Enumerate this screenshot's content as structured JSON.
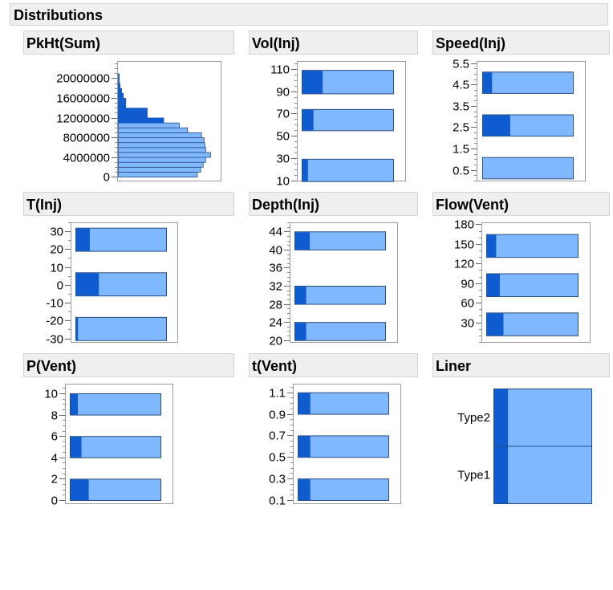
{
  "window": {
    "title": "Distributions"
  },
  "colors": {
    "bar_fill": "#80b8ff",
    "bar_selected": "#0f5cd1",
    "bar_stroke": "#2a4d80",
    "frame": "#9a9a9a",
    "header_bg": "#efefef"
  },
  "chart_data": [
    {
      "id": "pkht",
      "type": "bar",
      "orientation": "horizontal-histogram",
      "title": "PkHt(Sum)",
      "ylim": [
        -800000,
        23500000
      ],
      "y_ticks": [
        0,
        4000000,
        8000000,
        12000000,
        16000000,
        20000000
      ],
      "y_tick_labels": [
        "0",
        "4000000",
        "8000000",
        "12000000",
        "16000000",
        "20000000"
      ],
      "bins": [
        {
          "lo": 0,
          "hi": 1000000,
          "count": 96,
          "selected": 0
        },
        {
          "lo": 1000000,
          "hi": 2000000,
          "count": 100,
          "selected": 0
        },
        {
          "lo": 2000000,
          "hi": 3000000,
          "count": 103,
          "selected": 0
        },
        {
          "lo": 3000000,
          "hi": 4000000,
          "count": 106,
          "selected": 0
        },
        {
          "lo": 4000000,
          "hi": 5000000,
          "count": 112,
          "selected": 0
        },
        {
          "lo": 5000000,
          "hi": 6000000,
          "count": 106,
          "selected": 0
        },
        {
          "lo": 6000000,
          "hi": 7000000,
          "count": 105,
          "selected": 0
        },
        {
          "lo": 7000000,
          "hi": 8000000,
          "count": 104,
          "selected": 0
        },
        {
          "lo": 8000000,
          "hi": 9000000,
          "count": 101,
          "selected": 0
        },
        {
          "lo": 9000000,
          "hi": 10000000,
          "count": 84,
          "selected": 0
        },
        {
          "lo": 10000000,
          "hi": 11000000,
          "count": 74,
          "selected": 0
        },
        {
          "lo": 11000000,
          "hi": 12000000,
          "count": 55,
          "selected": 55
        },
        {
          "lo": 12000000,
          "hi": 13000000,
          "count": 35,
          "selected": 35
        },
        {
          "lo": 13000000,
          "hi": 14000000,
          "count": 35,
          "selected": 35
        },
        {
          "lo": 14000000,
          "hi": 15000000,
          "count": 9,
          "selected": 9
        },
        {
          "lo": 15000000,
          "hi": 16000000,
          "count": 9,
          "selected": 9
        },
        {
          "lo": 16000000,
          "hi": 17000000,
          "count": 6,
          "selected": 6
        },
        {
          "lo": 17000000,
          "hi": 18000000,
          "count": 4,
          "selected": 4
        },
        {
          "lo": 18000000,
          "hi": 19000000,
          "count": 2,
          "selected": 2
        },
        {
          "lo": 19000000,
          "hi": 20000000,
          "count": 1,
          "selected": 1
        },
        {
          "lo": 20000000,
          "hi": 21000000,
          "count": 1,
          "selected": 1
        },
        {
          "lo": 21000000,
          "hi": 22000000,
          "count": 0,
          "selected": 0
        },
        {
          "lo": 22000000,
          "hi": 23000000,
          "count": 0,
          "selected": 0
        }
      ],
      "xlim": [
        0,
        112
      ]
    },
    {
      "id": "vol",
      "type": "bar",
      "orientation": "horizontal",
      "title": "Vol(Inj)",
      "ylim": [
        10,
        117
      ],
      "y_ticks": [
        10,
        30,
        50,
        70,
        90,
        110
      ],
      "y_tick_labels": [
        "10",
        "30",
        "50",
        "70",
        "90",
        "110"
      ],
      "minor_step": 5,
      "bars": [
        {
          "lo": 9.5,
          "hi": 29.5,
          "total": 1,
          "selected": 0.06
        },
        {
          "lo": 55,
          "hi": 74,
          "total": 1,
          "selected": 0.12
        },
        {
          "lo": 88,
          "hi": 109,
          "total": 1,
          "selected": 0.22
        }
      ]
    },
    {
      "id": "speed",
      "type": "bar",
      "orientation": "horizontal",
      "title": "Speed(Inj)",
      "ylim": [
        0,
        5.6
      ],
      "y_ticks": [
        0.5,
        1.5,
        2.5,
        3.5,
        4.5,
        5.5
      ],
      "y_tick_labels": [
        "0.5",
        "1.5",
        "2.5",
        "3.5",
        "4.5",
        "5.5"
      ],
      "minor_step": 0.25,
      "bars": [
        {
          "lo": 0.1,
          "hi": 1.1,
          "total": 1,
          "selected": 0.0
        },
        {
          "lo": 2.1,
          "hi": 3.1,
          "total": 1,
          "selected": 0.3
        },
        {
          "lo": 4.1,
          "hi": 5.1,
          "total": 1,
          "selected": 0.1
        }
      ]
    },
    {
      "id": "tinj",
      "type": "bar",
      "orientation": "horizontal",
      "title": "T(Inj)",
      "ylim": [
        -32,
        35
      ],
      "y_ticks": [
        -30,
        -20,
        -10,
        0,
        10,
        20,
        30
      ],
      "y_tick_labels": [
        "-30",
        "-20",
        "-10",
        "0",
        "10",
        "20",
        "30"
      ],
      "minor_step": 5,
      "bars": [
        {
          "lo": -31,
          "hi": -18,
          "total": 1,
          "selected": 0.02
        },
        {
          "lo": -6,
          "hi": 7,
          "total": 1,
          "selected": 0.25
        },
        {
          "lo": 19,
          "hi": 32,
          "total": 1,
          "selected": 0.15
        }
      ]
    },
    {
      "id": "depth",
      "type": "bar",
      "orientation": "horizontal",
      "title": "Depth(Inj)",
      "ylim": [
        19.6,
        46
      ],
      "y_ticks": [
        20,
        24,
        28,
        32,
        36,
        40,
        44
      ],
      "y_tick_labels": [
        "20",
        "24",
        "28",
        "32",
        "36",
        "40",
        "44"
      ],
      "minor_step": 1,
      "bars": [
        {
          "lo": 20,
          "hi": 24,
          "total": 1,
          "selected": 0.12
        },
        {
          "lo": 28,
          "hi": 32,
          "total": 1,
          "selected": 0.12
        },
        {
          "lo": 40,
          "hi": 44,
          "total": 1,
          "selected": 0.16
        }
      ]
    },
    {
      "id": "flow",
      "type": "bar",
      "orientation": "horizontal",
      "title": "Flow(Vent)",
      "ylim": [
        0,
        183
      ],
      "y_ticks": [
        30,
        60,
        90,
        120,
        150,
        180
      ],
      "y_tick_labels": [
        "30",
        "60",
        "90",
        "120",
        "150",
        "180"
      ],
      "minor_step": 10,
      "bars": [
        {
          "lo": 10,
          "hi": 45,
          "total": 1,
          "selected": 0.18
        },
        {
          "lo": 70,
          "hi": 105,
          "total": 1,
          "selected": 0.14
        },
        {
          "lo": 130,
          "hi": 165,
          "total": 1,
          "selected": 0.1
        }
      ]
    },
    {
      "id": "pvent",
      "type": "bar",
      "orientation": "horizontal",
      "title": "P(Vent)",
      "ylim": [
        -0.3,
        10.9
      ],
      "y_ticks": [
        0,
        2,
        4,
        6,
        8,
        10
      ],
      "y_tick_labels": [
        "0",
        "2",
        "4",
        "6",
        "8",
        "10"
      ],
      "minor_step": 0.5,
      "bars": [
        {
          "lo": 0,
          "hi": 2,
          "total": 1,
          "selected": 0.2
        },
        {
          "lo": 4,
          "hi": 6,
          "total": 1,
          "selected": 0.12
        },
        {
          "lo": 8,
          "hi": 10,
          "total": 1,
          "selected": 0.08
        }
      ]
    },
    {
      "id": "tvent",
      "type": "bar",
      "orientation": "horizontal",
      "title": "t(Vent)",
      "ylim": [
        0.07,
        1.18
      ],
      "y_ticks": [
        0.1,
        0.3,
        0.5,
        0.7,
        0.9,
        1.1
      ],
      "y_tick_labels": [
        "0.1",
        "0.3",
        "0.5",
        "0.7",
        "0.9",
        "1.1"
      ],
      "minor_step": 0.05,
      "bars": [
        {
          "lo": 0.1,
          "hi": 0.3,
          "total": 1,
          "selected": 0.13
        },
        {
          "lo": 0.5,
          "hi": 0.7,
          "total": 1,
          "selected": 0.13
        },
        {
          "lo": 0.9,
          "hi": 1.1,
          "total": 1,
          "selected": 0.13
        }
      ]
    },
    {
      "id": "liner",
      "type": "bar",
      "orientation": "mosaic",
      "title": "Liner",
      "categories": [
        "Type1",
        "Type2"
      ],
      "values": [
        0.5,
        0.5
      ],
      "selected_fraction": [
        0.14,
        0.14
      ]
    }
  ]
}
